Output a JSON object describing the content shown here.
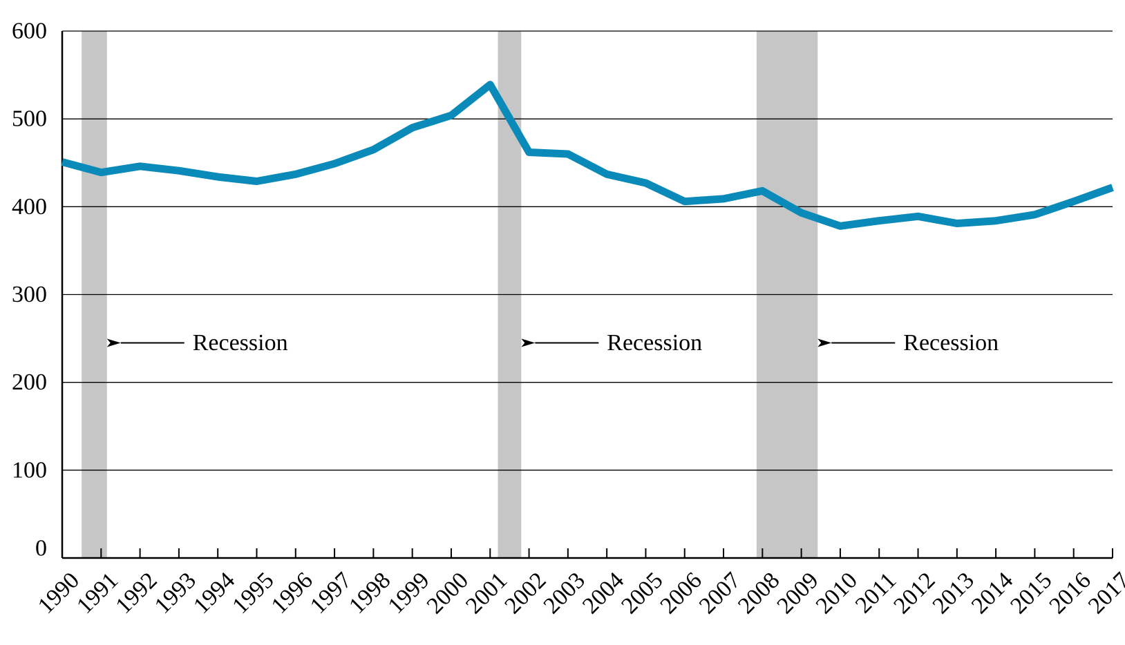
{
  "chart_data": {
    "type": "line",
    "title": "",
    "xlabel": "",
    "ylabel": "",
    "x": [
      "1990",
      "1991",
      "1992",
      "1993",
      "1994",
      "1995",
      "1996",
      "1997",
      "1998",
      "1999",
      "2000",
      "2001",
      "2002",
      "2003",
      "2004",
      "2005",
      "2006",
      "2007",
      "2008",
      "2009",
      "2010",
      "2011",
      "2012",
      "2013",
      "2014",
      "2015",
      "2016",
      "2017"
    ],
    "series": [
      {
        "values": [
          451,
          439,
          446,
          441,
          434,
          429,
          437,
          449,
          465,
          490,
          504,
          539,
          462,
          460,
          437,
          427,
          406,
          409,
          418,
          393,
          378,
          384,
          389,
          381,
          384,
          391,
          406,
          422
        ]
      }
    ],
    "ylim": [
      0,
      600
    ],
    "yticks": [
      0,
      100,
      200,
      300,
      400,
      500,
      600
    ],
    "grid": "horizontal",
    "legend": "none",
    "recessions": [
      {
        "start": 1990.5,
        "end": 1991.15,
        "label": "Recession",
        "label_y": 245
      },
      {
        "start": 2001.2,
        "end": 2001.8,
        "label": "Recession",
        "label_y": 245
      },
      {
        "start": 2007.85,
        "end": 2009.42,
        "label": "Recession",
        "label_y": 245
      }
    ],
    "colors": {
      "line": "#0a8ab8",
      "recession": "#c6c6c6",
      "grid": "#000000",
      "axis": "#000000"
    }
  }
}
